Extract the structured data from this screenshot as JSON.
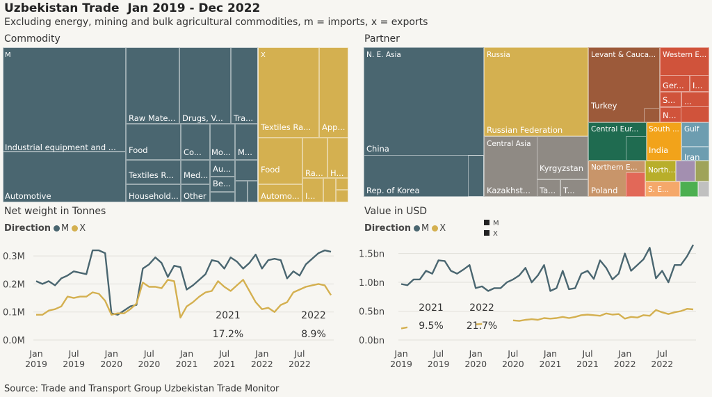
{
  "header": {
    "title": "Uzbekistan Trade  Jan 2019 - Dec 2022",
    "subtitle": "Excluding energy, mining and bulk agricultural commodities, m = imports, x = exports"
  },
  "colors": {
    "M": "#4a6670",
    "X": "#d4b050"
  },
  "commodity": {
    "title": "Commodity",
    "groups": [
      {
        "label": "M",
        "color": "#4a6670"
      },
      {
        "label": "X",
        "color": "#d4b050"
      }
    ],
    "labels": {
      "industrial": "Industrial equipment and ...",
      "automotive": "Automotive",
      "raw": "Raw Mate...",
      "drugs": "Drugs, V...",
      "tra": "Tra...",
      "food_m": "Food",
      "co": "Co...",
      "mo": "Mo...",
      "m_small": "M...",
      "textiles_m": "Textiles R...",
      "med": "Med...",
      "au": "Au...",
      "be": "Be...",
      "household": "Household...",
      "other": "Other",
      "textiles_x": "Textiles Ra...",
      "app": "App...",
      "food_x": "Food",
      "ra": "Ra...",
      "h": "H...",
      "automo_x": "Automo...",
      "i": "I..."
    }
  },
  "partner": {
    "title": "Partner",
    "labels": {
      "ne_asia": "N. E. Asia",
      "china": "China",
      "korea": "Rep. of Korea",
      "russia_grp": "Russia",
      "russia": "Russian Federation",
      "central_asia": "Central Asia",
      "kyrgyzstan": "Kyrgyzstan",
      "kazakhstan": "Kazakhst...",
      "ta": "Ta...",
      "t": "T...",
      "levant": "Levant & Cauca...",
      "turkey": "Turkey",
      "western_e": "Western E...",
      "ger": "Ger...",
      "i": "I...",
      "s": "S...",
      "dots": "...",
      "n": "N...",
      "central_eur": "Central Eur...",
      "south": "South ...",
      "gulf": "Gulf",
      "india": "India",
      "iran": "Iran",
      "northern_e": "Northern E...",
      "poland": "Poland",
      "north": "North...",
      "s_e": "S. E..."
    }
  },
  "weight_chart": {
    "title": "Net weight in Tonnes",
    "legend_title": "Direction",
    "legend_m": "M",
    "legend_x": "X",
    "y_ticks": [
      "0.0M",
      "0.1M",
      "0.2M",
      "0.3M"
    ],
    "x_ticks": [
      [
        "Jan",
        "2019"
      ],
      [
        "Jul",
        "2019"
      ],
      [
        "Jan",
        "2020"
      ],
      [
        "Jul",
        "2020"
      ],
      [
        "Jan",
        "2021"
      ],
      [
        "Jul",
        "2021"
      ],
      [
        "Jan",
        "2022"
      ],
      [
        "Jul",
        "2022"
      ]
    ],
    "ann_2021_year": "2021",
    "ann_2021_pct": "17.2%",
    "ann_2022_year": "2022",
    "ann_2022_pct": "8.9%"
  },
  "value_chart": {
    "title": "Value in USD",
    "legend_title": "Direction",
    "legend_m": "M",
    "legend_x": "X",
    "key_m": "M",
    "key_x": "X",
    "y_ticks": [
      "0.0bn",
      "0.5bn",
      "1.0bn",
      "1.5bn"
    ],
    "x_ticks": [
      [
        "Jan",
        "2019"
      ],
      [
        "Jul",
        "2019"
      ],
      [
        "Jan",
        "2020"
      ],
      [
        "Jul",
        "2020"
      ],
      [
        "Jan",
        "2021"
      ],
      [
        "Jul",
        "2021"
      ],
      [
        "Jan",
        "2022"
      ],
      [
        "Jul",
        "2022"
      ]
    ],
    "ann_2021_year": "2021",
    "ann_2021_pct": "9.5%",
    "ann_2022_year": "2022",
    "ann_2022_pct": "21.7%"
  },
  "chart_data": [
    {
      "type": "line",
      "title": "Net weight in Tonnes",
      "x_start": "2019-01",
      "x_end": "2022-12",
      "ylim": [
        0,
        0.35
      ],
      "y_unit": "M tonnes",
      "series": [
        {
          "name": "M",
          "values": [
            0.21,
            0.2,
            0.21,
            0.195,
            0.22,
            0.23,
            0.245,
            0.24,
            0.235,
            0.32,
            0.32,
            0.31,
            0.095,
            0.09,
            0.105,
            0.12,
            0.125,
            0.255,
            0.27,
            0.295,
            0.275,
            0.225,
            0.265,
            0.26,
            0.18,
            0.195,
            0.215,
            0.235,
            0.285,
            0.28,
            0.255,
            0.295,
            0.28,
            0.255,
            0.275,
            0.305,
            0.255,
            0.285,
            0.29,
            0.285,
            0.22,
            0.245,
            0.23,
            0.27,
            0.29,
            0.31,
            0.32,
            0.315
          ]
        },
        {
          "name": "X",
          "values": [
            0.09,
            0.09,
            0.105,
            0.11,
            0.12,
            0.155,
            0.15,
            0.155,
            0.155,
            0.17,
            0.165,
            0.14,
            0.09,
            0.095,
            0.095,
            0.11,
            0.13,
            0.205,
            0.19,
            0.19,
            0.185,
            0.215,
            0.21,
            0.08,
            0.12,
            0.135,
            0.155,
            0.17,
            0.175,
            0.21,
            0.19,
            0.175,
            0.195,
            0.215,
            0.175,
            0.135,
            0.11,
            0.115,
            0.1,
            0.125,
            0.135,
            0.17,
            0.18,
            0.19,
            0.195,
            0.2,
            0.195,
            0.16
          ]
        }
      ]
    },
    {
      "type": "line",
      "title": "Value in USD",
      "x_start": "2019-01",
      "x_end": "2022-12",
      "ylim": [
        0,
        1.7
      ],
      "y_unit": "bn USD",
      "series": [
        {
          "name": "M",
          "values": [
            0.97,
            0.95,
            1.05,
            1.05,
            1.2,
            1.15,
            1.38,
            1.37,
            1.2,
            1.15,
            1.22,
            1.3,
            0.9,
            0.93,
            0.85,
            0.9,
            0.9,
            1.0,
            1.05,
            1.12,
            1.25,
            1.0,
            1.12,
            1.3,
            0.85,
            0.9,
            1.2,
            0.88,
            0.9,
            1.15,
            1.2,
            1.06,
            1.38,
            1.25,
            1.05,
            1.15,
            1.5,
            1.2,
            1.3,
            1.4,
            1.6,
            1.07,
            1.2,
            1.0,
            1.3,
            1.3,
            1.45,
            1.65
          ]
        },
        {
          "name": "X",
          "values": [
            0.2,
            0.22,
            null,
            null,
            null,
            null,
            null,
            null,
            null,
            null,
            null,
            null,
            0.27,
            0.28,
            null,
            null,
            null,
            null,
            0.34,
            0.33,
            0.35,
            0.36,
            0.35,
            0.38,
            0.37,
            0.38,
            0.4,
            0.38,
            0.4,
            0.43,
            0.44,
            0.43,
            0.42,
            0.46,
            0.44,
            0.45,
            0.37,
            0.4,
            0.39,
            0.43,
            0.42,
            0.52,
            0.48,
            0.45,
            0.48,
            0.5,
            0.54,
            0.53
          ]
        }
      ]
    }
  ],
  "footer": {
    "source": "Source: Trade and Transport Group Uzbekistan Trade Monitor"
  }
}
